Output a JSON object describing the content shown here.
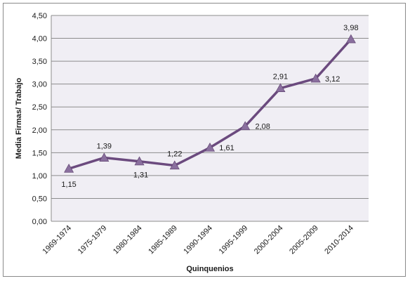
{
  "chart_data": {
    "type": "line",
    "title": "",
    "xlabel": "Quinquenios",
    "ylabel": "Media Firmas/ Trabajo",
    "categories": [
      "1969-1974",
      "1975-1979",
      "1980-1984",
      "1985-1989",
      "1990-1994",
      "1995-1999",
      "2000-2004",
      "2005-2009",
      "2010-2014"
    ],
    "series": [
      {
        "values": [
          1.15,
          1.39,
          1.31,
          1.22,
          1.61,
          2.08,
          2.91,
          3.12,
          3.98
        ],
        "data_labels": [
          "1,15",
          "1,39",
          "1,31",
          "1,22",
          "1,61",
          "2,08",
          "2,91",
          "3,12",
          "3,98"
        ],
        "color": "#6b4a7e",
        "marker": "triangle",
        "marker_color": "#8a6f9e"
      }
    ],
    "y_ticks": [
      "0,00",
      "0,50",
      "1,00",
      "1,50",
      "2,00",
      "2,50",
      "3,00",
      "3,50",
      "4,00",
      "4,50"
    ],
    "ylim": [
      0,
      4.5
    ],
    "grid": true,
    "plot_background": "#f0eef4",
    "gridline_color": "#8c8c8c"
  }
}
